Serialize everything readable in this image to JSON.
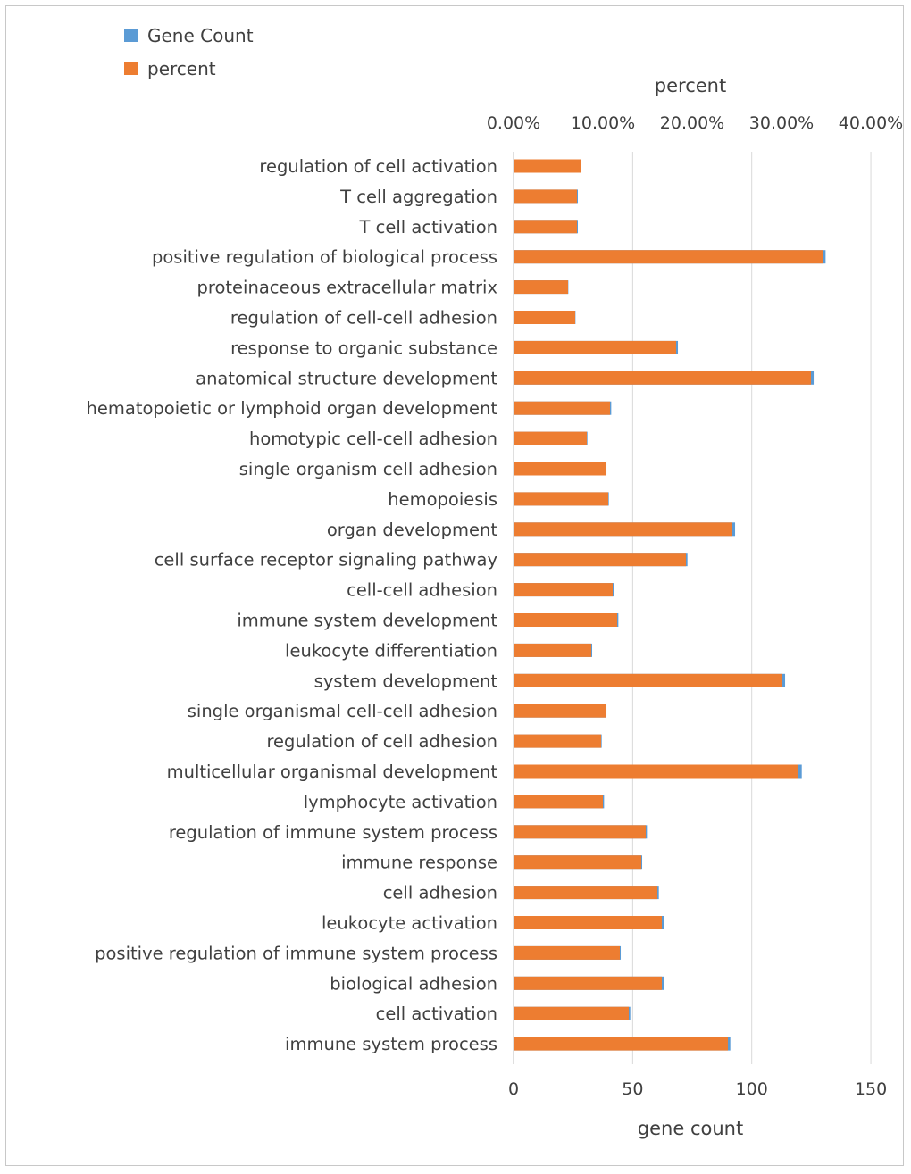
{
  "chart_data": {
    "type": "bar",
    "orientation": "horizontal",
    "legend": {
      "position": "top-left",
      "entries": [
        {
          "label": "Gene Count",
          "color": "#5b9bd5"
        },
        {
          "label": "percent",
          "color": "#ed7d31"
        }
      ]
    },
    "top_axis": {
      "label": "percent",
      "ticks": [
        "0.00%",
        "10.00%",
        "20.00%",
        "30.00%",
        "40.00%"
      ],
      "range": [
        0,
        40
      ]
    },
    "bottom_axis": {
      "label": "gene count",
      "ticks": [
        "0",
        "50",
        "100",
        "150"
      ],
      "range": [
        0,
        150
      ]
    },
    "grid": true,
    "categories": [
      "regulation of cell activation",
      "T cell aggregation",
      "T cell activation",
      "positive regulation of biological process",
      "proteinaceous extracellular matrix",
      "regulation of cell-cell adhesion",
      "response to organic substance",
      "anatomical structure development",
      "hematopoietic or lymphoid organ development",
      "homotypic cell-cell adhesion",
      "single organism cell adhesion",
      "hemopoiesis",
      "organ development",
      "cell surface receptor signaling pathway",
      "cell-cell adhesion",
      "immune system development",
      "leukocyte differentiation",
      "system development",
      "single organismal cell-cell adhesion",
      "regulation of cell adhesion",
      "multicellular organismal development",
      "lymphocyte activation",
      "regulation of immune system process",
      "immune response",
      "cell adhesion",
      "leukocyte activation",
      "positive regulation of immune system process",
      "biological adhesion",
      "cell activation",
      "immune system process"
    ],
    "series": [
      {
        "name": "Gene Count",
        "color": "#5b9bd5",
        "axis": "bottom",
        "values": [
          28,
          27,
          27,
          131,
          23,
          26,
          69,
          126,
          41,
          31,
          39,
          40,
          93,
          73,
          42,
          44,
          33,
          114,
          39,
          37,
          121,
          38,
          56,
          54,
          61,
          63,
          45,
          63,
          49,
          91
        ]
      },
      {
        "name": "percent",
        "color": "#ed7d31",
        "axis": "top",
        "values": [
          7.5,
          7.1,
          7.1,
          34.6,
          6.1,
          6.9,
          18.2,
          33.3,
          10.8,
          8.2,
          10.3,
          10.6,
          24.5,
          19.3,
          11.1,
          11.6,
          8.7,
          30.1,
          10.3,
          9.8,
          31.9,
          10.0,
          14.8,
          14.3,
          16.1,
          16.6,
          11.9,
          16.6,
          12.9,
          24.0
        ]
      }
    ]
  }
}
